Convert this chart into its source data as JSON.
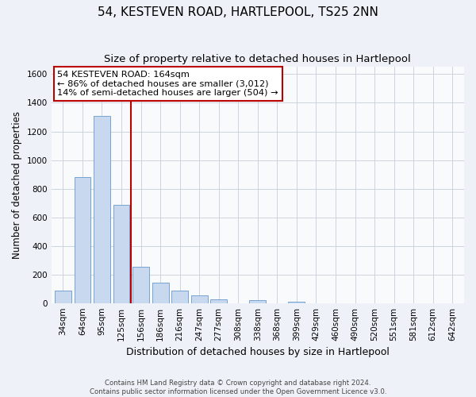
{
  "title": "54, KESTEVEN ROAD, HARTLEPOOL, TS25 2NN",
  "subtitle": "Size of property relative to detached houses in Hartlepool",
  "xlabel": "Distribution of detached houses by size in Hartlepool",
  "ylabel": "Number of detached properties",
  "categories": [
    "34sqm",
    "64sqm",
    "95sqm",
    "125sqm",
    "156sqm",
    "186sqm",
    "216sqm",
    "247sqm",
    "277sqm",
    "308sqm",
    "338sqm",
    "368sqm",
    "399sqm",
    "429sqm",
    "460sqm",
    "490sqm",
    "520sqm",
    "551sqm",
    "581sqm",
    "612sqm",
    "642sqm"
  ],
  "values": [
    88,
    880,
    1310,
    685,
    252,
    143,
    88,
    52,
    25,
    0,
    22,
    0,
    12,
    0,
    0,
    0,
    0,
    0,
    0,
    0,
    0
  ],
  "bar_color": "#c8d8ee",
  "bar_edge_color": "#6699cc",
  "vline_x": 3.5,
  "vline_color": "#bb0000",
  "annotation_title": "54 KESTEVEN ROAD: 164sqm",
  "annotation_line1": "← 86% of detached houses are smaller (3,012)",
  "annotation_line2": "14% of semi-detached houses are larger (504) →",
  "annotation_box_color": "#ffffff",
  "annotation_box_edge": "#bb0000",
  "ylim": [
    0,
    1650
  ],
  "yticks": [
    0,
    200,
    400,
    600,
    800,
    1000,
    1200,
    1400,
    1600
  ],
  "footer_line1": "Contains HM Land Registry data © Crown copyright and database right 2024.",
  "footer_line2": "Contains public sector information licensed under the Open Government Licence v3.0.",
  "background_color": "#eef2f8",
  "plot_background": "#f8fafc",
  "title_fontsize": 11,
  "subtitle_fontsize": 9.5,
  "ylabel_fontsize": 8.5,
  "xlabel_fontsize": 9
}
